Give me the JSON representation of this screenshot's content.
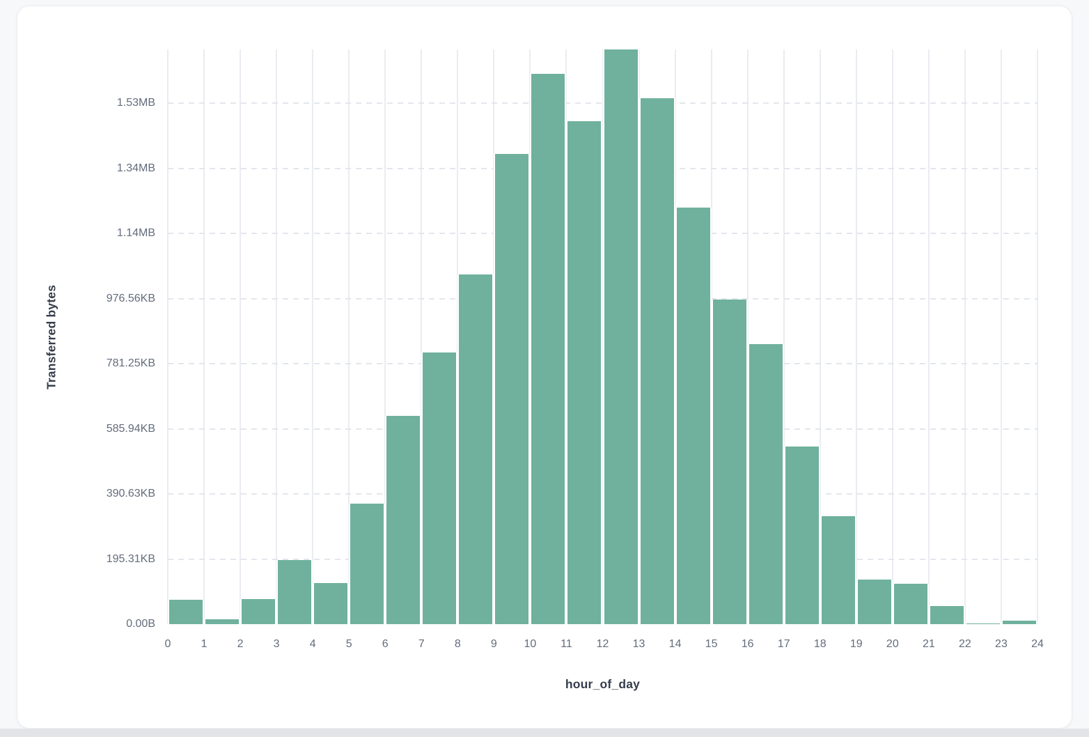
{
  "card": {
    "background": "#ffffff"
  },
  "page": {
    "background": "#f7f8fa",
    "bottom_strip_color": "#e2e4e8"
  },
  "chart_data": {
    "type": "bar",
    "subtype": "histogram",
    "title": "",
    "xlabel": "hour_of_day",
    "ylabel": "Transferred bytes",
    "categories": [
      0,
      1,
      2,
      3,
      4,
      5,
      6,
      7,
      8,
      9,
      10,
      11,
      12,
      13,
      14,
      15,
      16,
      17,
      18,
      19,
      20,
      21,
      22,
      23
    ],
    "values": [
      74000,
      15000,
      78000,
      196000,
      127000,
      370000,
      640000,
      835000,
      1075000,
      1445000,
      1690000,
      1545000,
      1765000,
      1615000,
      1280000,
      998000,
      860000,
      545000,
      331000,
      138000,
      125000,
      55000,
      3000,
      10000
    ],
    "values_unit": "bytes",
    "x_tick_labels": [
      "0",
      "1",
      "2",
      "3",
      "4",
      "5",
      "6",
      "7",
      "8",
      "9",
      "10",
      "11",
      "12",
      "13",
      "14",
      "15",
      "16",
      "17",
      "18",
      "19",
      "20",
      "21",
      "22",
      "23",
      "24"
    ],
    "y_ticks": [
      {
        "value": 0,
        "label": "0.00B"
      },
      {
        "value": 200000,
        "label": "195.31KB"
      },
      {
        "value": 400000,
        "label": "390.63KB"
      },
      {
        "value": 600000,
        "label": "585.94KB"
      },
      {
        "value": 800000,
        "label": "781.25KB"
      },
      {
        "value": 1000000,
        "label": "976.56KB"
      },
      {
        "value": 1200000,
        "label": "1.14MB"
      },
      {
        "value": 1400000,
        "label": "1.34MB"
      },
      {
        "value": 1600000,
        "label": "1.53MB"
      }
    ],
    "ylim": [
      0,
      1765000
    ],
    "xlim": [
      0,
      24
    ],
    "grid": true,
    "legend": false,
    "bar_color": "#6FB19C",
    "vgrid_color": "#eaecf1",
    "hgrid_color": "#e3e6ec"
  }
}
